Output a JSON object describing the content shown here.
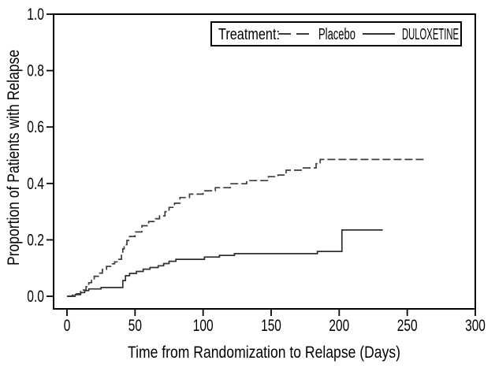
{
  "chart_data": {
    "type": "line",
    "subtype": "kaplan-meier-step",
    "title": "",
    "xlabel": "Time from Randomization to Relapse (Days)",
    "ylabel": "Proportion of Patients with Relapse",
    "xlim": [
      0,
      300
    ],
    "ylim": [
      0.0,
      1.0
    ],
    "xticks": [
      0,
      50,
      100,
      150,
      200,
      250,
      300
    ],
    "xtick_labels": [
      "0",
      "50",
      "100",
      "150",
      "200",
      "250",
      "300"
    ],
    "yticks": [
      0.0,
      0.2,
      0.4,
      0.6,
      0.8,
      1.0
    ],
    "ytick_labels": [
      "0.0",
      "0.2",
      "0.4",
      "0.6",
      "0.8",
      "1.0"
    ],
    "grid": false,
    "colors": {
      "axis": "#000000",
      "text": "#000000",
      "background": "#ffffff"
    },
    "legend": {
      "title": "Treatment:",
      "position": "top-right-inside",
      "entries": [
        {
          "label": "Placebo",
          "line_style": "dashed"
        },
        {
          "label": "DULOXETINE",
          "line_style": "solid"
        }
      ]
    },
    "series": [
      {
        "name": "Placebo",
        "line_style": "dashed",
        "color": "#3d3d3d",
        "end_day": 264,
        "final_proportion": 0.485,
        "points": [
          [
            0,
            0
          ],
          [
            4,
            0.004
          ],
          [
            7,
            0.009
          ],
          [
            10,
            0.017
          ],
          [
            12,
            0.022
          ],
          [
            14,
            0.034
          ],
          [
            16,
            0.048
          ],
          [
            18,
            0.061
          ],
          [
            20,
            0.071
          ],
          [
            23,
            0.082
          ],
          [
            26,
            0.095
          ],
          [
            29,
            0.106
          ],
          [
            32,
            0.115
          ],
          [
            35,
            0.122
          ],
          [
            38,
            0.131
          ],
          [
            40,
            0.15
          ],
          [
            41,
            0.168
          ],
          [
            42,
            0.183
          ],
          [
            44,
            0.198
          ],
          [
            46,
            0.212
          ],
          [
            50,
            0.228
          ],
          [
            55,
            0.25
          ],
          [
            60,
            0.265
          ],
          [
            64,
            0.275
          ],
          [
            68,
            0.285
          ],
          [
            72,
            0.3
          ],
          [
            75,
            0.315
          ],
          [
            79,
            0.33
          ],
          [
            83,
            0.35
          ],
          [
            90,
            0.362
          ],
          [
            100,
            0.374
          ],
          [
            109,
            0.385
          ],
          [
            120,
            0.399
          ],
          [
            132,
            0.41
          ],
          [
            148,
            0.424
          ],
          [
            155,
            0.43
          ],
          [
            161,
            0.447
          ],
          [
            172,
            0.455
          ],
          [
            183,
            0.47
          ],
          [
            186,
            0.485
          ]
        ]
      },
      {
        "name": "DULOXETINE",
        "line_style": "solid",
        "color": "#2f2f2f",
        "end_day": 232,
        "final_proportion": 0.235,
        "points": [
          [
            0,
            0
          ],
          [
            6,
            0.006
          ],
          [
            10,
            0.013
          ],
          [
            13,
            0.02
          ],
          [
            16,
            0.026
          ],
          [
            25,
            0.031
          ],
          [
            41,
            0.056
          ],
          [
            43,
            0.073
          ],
          [
            46,
            0.081
          ],
          [
            51,
            0.088
          ],
          [
            56,
            0.096
          ],
          [
            61,
            0.102
          ],
          [
            67,
            0.108
          ],
          [
            71,
            0.116
          ],
          [
            75,
            0.124
          ],
          [
            80,
            0.131
          ],
          [
            101,
            0.139
          ],
          [
            112,
            0.145
          ],
          [
            123,
            0.151
          ],
          [
            184,
            0.159
          ],
          [
            202,
            0.235
          ]
        ]
      }
    ]
  }
}
